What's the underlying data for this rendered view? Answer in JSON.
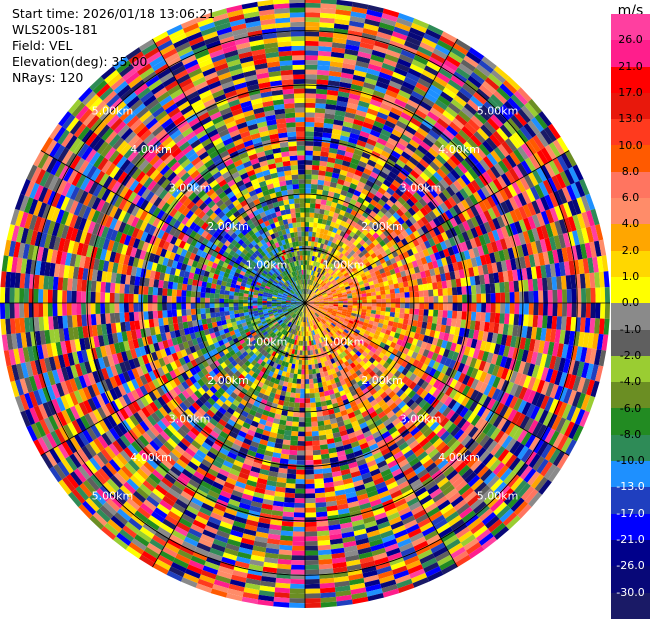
{
  "info": {
    "start_time": "Start time: 2026/01/18 13:06:21",
    "station": "WLS200s-181",
    "field": "Field: VEL",
    "elevation": "Elevation(deg): 35.00",
    "nrays": "NRays: 120"
  },
  "colorbar": {
    "unit": "m/s",
    "colors": [
      "#ff3fa0",
      "#ff1e8c",
      "#ff0000",
      "#e8180c",
      "#ff3a1e",
      "#ff5a00",
      "#ff7560",
      "#ff8c69",
      "#ffa600",
      "#ffd700",
      "#ffff00",
      "#8a8a8a",
      "#5f5f5f",
      "#9acd32",
      "#6b8e23",
      "#228b22",
      "#2e8b57",
      "#1e90ff",
      "#1f3fbf",
      "#0000ff",
      "#00008b",
      "#080878",
      "#1a1a66"
    ],
    "labels": [
      "26.0",
      "21.0",
      "17.0",
      "13.0",
      "10.0",
      "8.0",
      "6.0",
      "4.0",
      "2.0",
      "1.0",
      "0.0",
      "-1.0",
      "-2.0",
      "-4.0",
      "-6.0",
      "-8.0",
      "-10.0",
      "-13.0",
      "-17.0",
      "-21.0",
      "-26.0",
      "-30.0"
    ]
  },
  "chart_data": {
    "type": "ppi",
    "field": "VEL",
    "units": "m/s",
    "elevation_deg": 35.0,
    "nrays": 120,
    "range_rings_km": [
      1.0,
      2.0,
      3.0,
      4.0,
      5.0
    ],
    "ring_labels": [
      "1.00km",
      "2.00km",
      "3.00km",
      "4.00km",
      "5.00km"
    ],
    "max_range_km": 5.6,
    "color_levels": [
      -30.0,
      -26.0,
      -21.0,
      -17.0,
      -13.0,
      -10.0,
      -8.0,
      -6.0,
      -4.0,
      -2.0,
      -1.0,
      0.0,
      1.0,
      2.0,
      4.0,
      6.0,
      8.0,
      10.0,
      13.0,
      17.0,
      21.0,
      26.0
    ]
  }
}
